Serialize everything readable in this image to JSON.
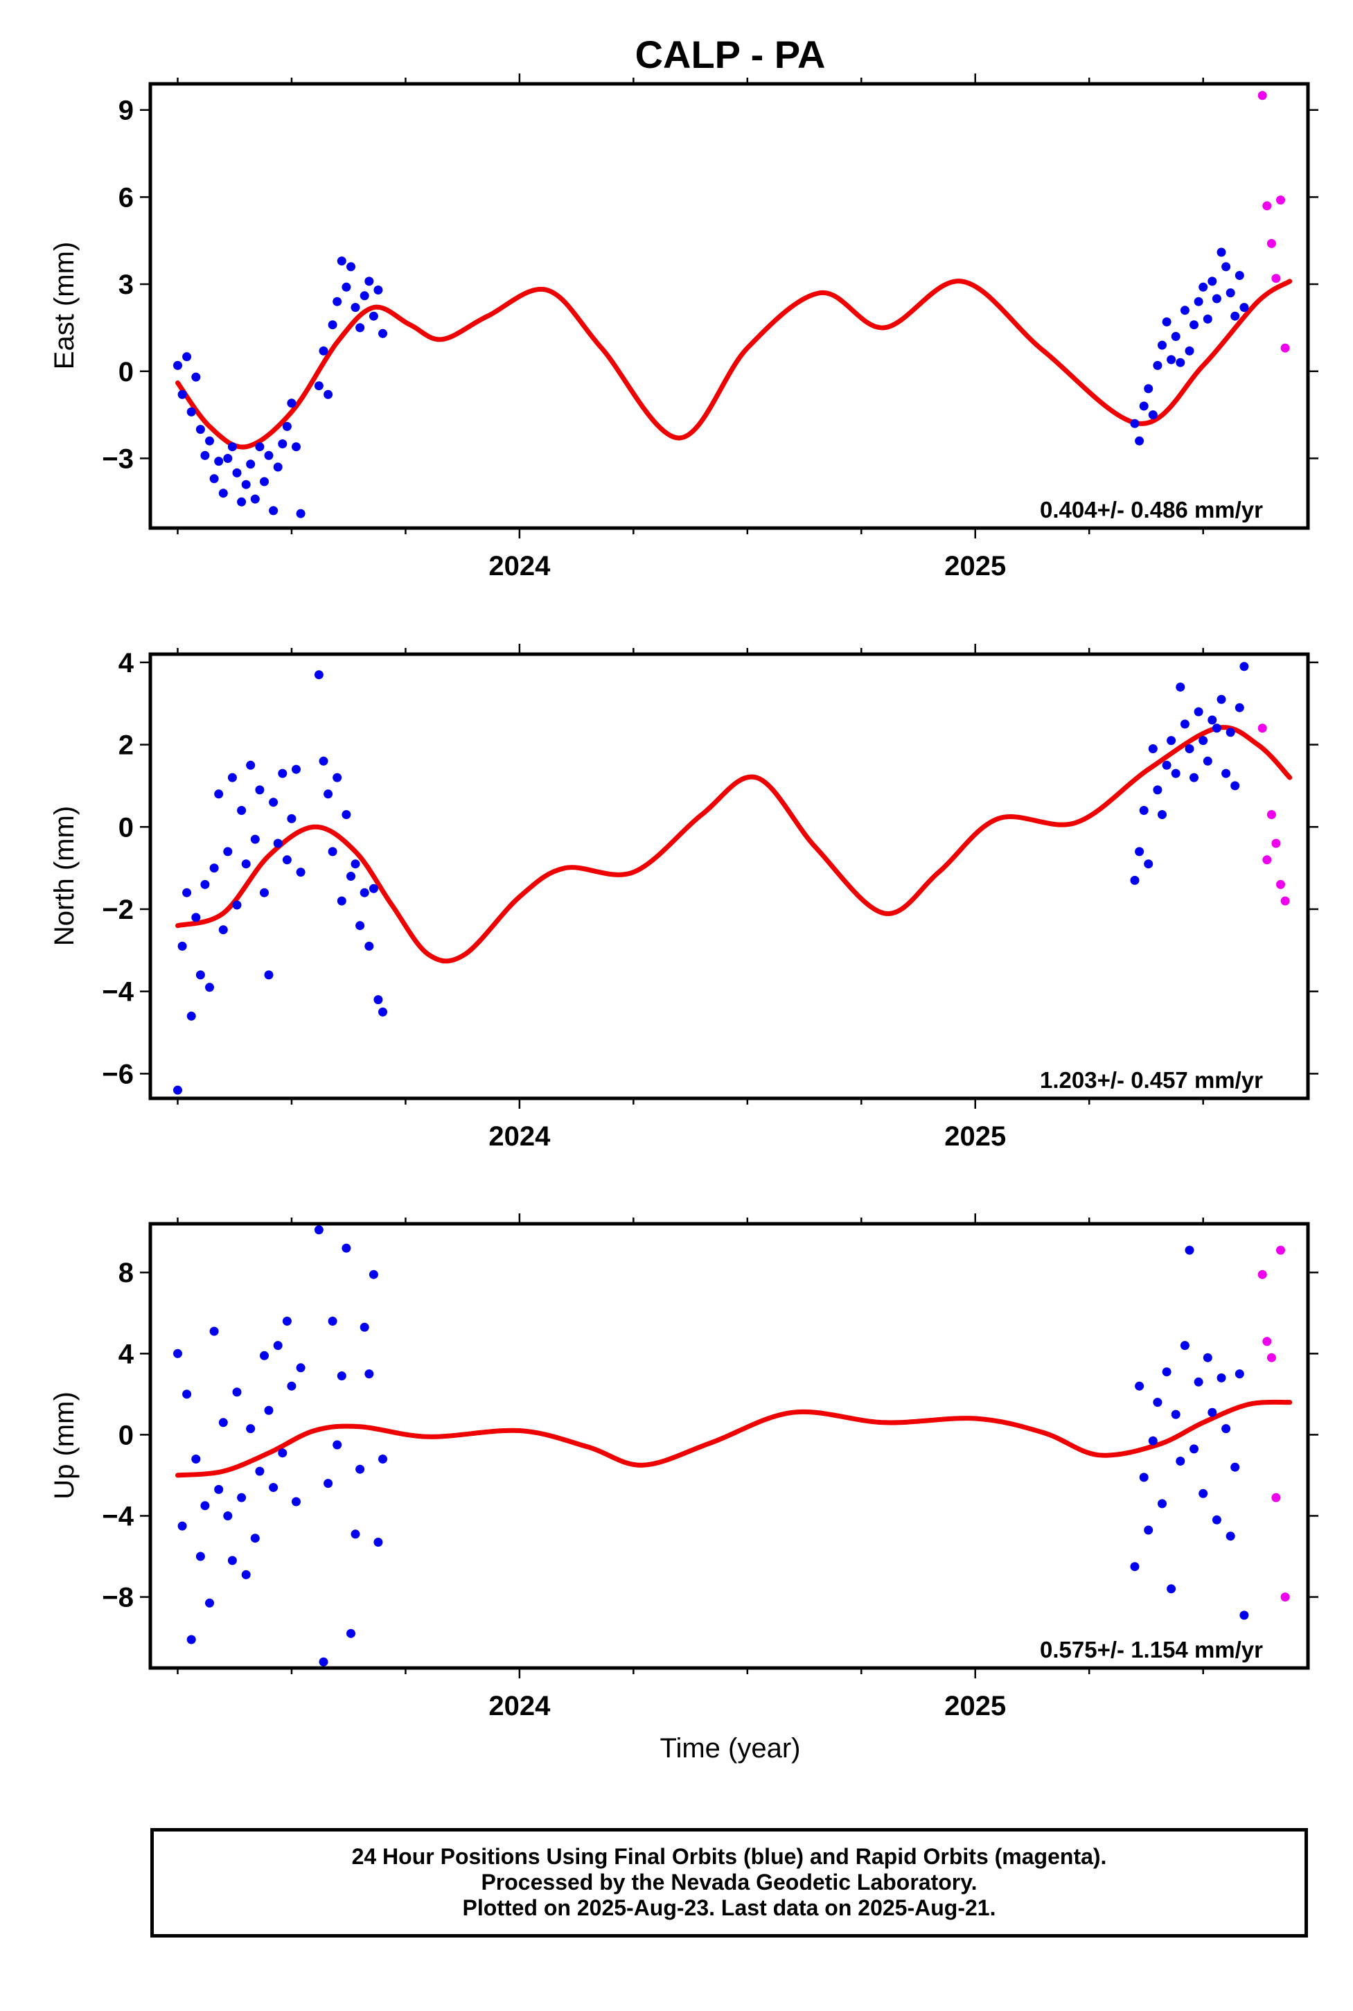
{
  "figure": {
    "title": "CALP - PA",
    "xlabel": "Time (year)",
    "caption_lines": [
      "24 Hour Positions Using Final Orbits (blue) and Rapid Orbits (magenta).",
      "Processed by the Nevada Geodetic Laboratory.",
      "Plotted on 2025-Aug-23. Last data on 2025-Aug-21."
    ],
    "colors": {
      "final": "#0000ee",
      "rapid": "#ee00ee",
      "model": "#ee0000",
      "axes": "#000000",
      "background": "#ffffff"
    }
  },
  "chart_data": [
    {
      "type": "scatter",
      "ylabel": "East (mm)",
      "rate_label": "0.404+/- 0.486 mm/yr",
      "xlim": [
        2023.19,
        2025.73
      ],
      "ylim": [
        -5.4,
        9.9
      ],
      "xticks": [
        "2024",
        "2025"
      ],
      "yticks": [
        "9",
        "6",
        "3",
        "0",
        "−3"
      ],
      "ytick_values": [
        9,
        6,
        3,
        0,
        -3
      ],
      "series": [
        {
          "kind": "final",
          "x": [
            2023.25,
            2023.26,
            2023.27,
            2023.28,
            2023.29,
            2023.3,
            2023.31,
            2023.32,
            2023.33,
            2023.34,
            2023.35,
            2023.36,
            2023.37,
            2023.38,
            2023.39,
            2023.4,
            2023.41,
            2023.42,
            2023.43,
            2023.44,
            2023.45,
            2023.46,
            2023.47,
            2023.48,
            2023.49,
            2023.5,
            2023.51,
            2023.52,
            2023.56,
            2023.57,
            2023.58,
            2023.59,
            2023.6,
            2023.61,
            2023.62,
            2023.63,
            2023.64,
            2023.65,
            2023.66,
            2023.67,
            2023.68,
            2023.69,
            2023.7,
            2025.35,
            2025.36,
            2025.37,
            2025.38,
            2025.39,
            2025.4,
            2025.41,
            2025.42,
            2025.43,
            2025.44,
            2025.45,
            2025.46,
            2025.47,
            2025.48,
            2025.49,
            2025.5,
            2025.51,
            2025.52,
            2025.53,
            2025.54,
            2025.55,
            2025.56,
            2025.57,
            2025.58,
            2025.59
          ],
          "y": [
            0.2,
            -0.8,
            0.5,
            -1.4,
            -0.2,
            -2.0,
            -2.9,
            -2.4,
            -3.7,
            -3.1,
            -4.2,
            -3.0,
            -2.6,
            -3.5,
            -4.5,
            -3.9,
            -3.2,
            -4.4,
            -2.6,
            -3.8,
            -2.9,
            -4.8,
            -3.3,
            -2.5,
            -1.9,
            -1.1,
            -2.6,
            -4.9,
            -0.5,
            0.7,
            -0.8,
            1.6,
            2.4,
            3.8,
            2.9,
            3.6,
            2.2,
            1.5,
            2.6,
            3.1,
            1.9,
            2.8,
            1.3,
            -1.8,
            -2.4,
            -1.2,
            -0.6,
            -1.5,
            0.2,
            0.9,
            1.7,
            0.4,
            1.2,
            0.3,
            2.1,
            0.7,
            1.6,
            2.4,
            2.9,
            1.8,
            3.1,
            2.5,
            4.1,
            3.6,
            2.7,
            1.9,
            3.3,
            2.2
          ]
        },
        {
          "kind": "rapid",
          "x": [
            2025.63,
            2025.64,
            2025.65,
            2025.66,
            2025.67,
            2025.68
          ],
          "y": [
            9.5,
            5.7,
            4.4,
            3.2,
            5.9,
            0.8
          ]
        }
      ]
    },
    {
      "type": "scatter",
      "ylabel": "North (mm)",
      "rate_label": "1.203+/- 0.457 mm/yr",
      "xlim": [
        2023.19,
        2025.73
      ],
      "ylim": [
        -6.6,
        4.2
      ],
      "xticks": [
        "2024",
        "2025"
      ],
      "yticks": [
        "4",
        "2",
        "0",
        "−2",
        "−4",
        "−6"
      ],
      "ytick_values": [
        4,
        2,
        0,
        -2,
        -4,
        -6
      ],
      "series": [
        {
          "kind": "final",
          "x": [
            2023.25,
            2023.26,
            2023.27,
            2023.28,
            2023.29,
            2023.3,
            2023.31,
            2023.32,
            2023.33,
            2023.34,
            2023.35,
            2023.36,
            2023.37,
            2023.38,
            2023.39,
            2023.4,
            2023.41,
            2023.42,
            2023.43,
            2023.44,
            2023.45,
            2023.46,
            2023.47,
            2023.48,
            2023.49,
            2023.5,
            2023.51,
            2023.52,
            2023.56,
            2023.57,
            2023.58,
            2023.59,
            2023.6,
            2023.61,
            2023.62,
            2023.63,
            2023.64,
            2023.65,
            2023.66,
            2023.67,
            2023.68,
            2023.69,
            2023.7,
            2025.35,
            2025.36,
            2025.37,
            2025.38,
            2025.39,
            2025.4,
            2025.41,
            2025.42,
            2025.43,
            2025.44,
            2025.45,
            2025.46,
            2025.47,
            2025.48,
            2025.49,
            2025.5,
            2025.51,
            2025.52,
            2025.53,
            2025.54,
            2025.55,
            2025.56,
            2025.57,
            2025.58,
            2025.59
          ],
          "y": [
            -6.4,
            -2.9,
            -1.6,
            -4.6,
            -2.2,
            -3.6,
            -1.4,
            -3.9,
            -1.0,
            0.8,
            -2.5,
            -0.6,
            1.2,
            -1.9,
            0.4,
            -0.9,
            1.5,
            -0.3,
            0.9,
            -1.6,
            -3.6,
            0.6,
            -0.4,
            1.3,
            -0.8,
            0.2,
            1.4,
            -1.1,
            3.7,
            1.6,
            0.8,
            -0.6,
            1.2,
            -1.8,
            0.3,
            -1.2,
            -0.9,
            -2.4,
            -1.6,
            -2.9,
            -1.5,
            -4.2,
            -4.5,
            -1.3,
            -0.6,
            0.4,
            -0.9,
            1.9,
            0.9,
            0.3,
            1.5,
            2.1,
            1.3,
            3.4,
            2.5,
            1.9,
            1.2,
            2.8,
            2.1,
            1.6,
            2.6,
            2.4,
            3.1,
            1.3,
            2.3,
            1.0,
            2.9,
            3.9
          ]
        },
        {
          "kind": "rapid",
          "x": [
            2025.63,
            2025.64,
            2025.65,
            2025.66,
            2025.67,
            2025.68
          ],
          "y": [
            2.4,
            -0.8,
            0.3,
            -0.4,
            -1.4,
            -1.8
          ]
        }
      ]
    },
    {
      "type": "scatter",
      "ylabel": "Up (mm)",
      "rate_label": "0.575+/- 1.154 mm/yr",
      "xlim": [
        2023.19,
        2025.73
      ],
      "ylim": [
        -11.5,
        10.4
      ],
      "xticks": [
        "2024",
        "2025"
      ],
      "yticks": [
        "8",
        "4",
        "0",
        "−4",
        "−8"
      ],
      "ytick_values": [
        8,
        4,
        0,
        -4,
        -8
      ],
      "series": [
        {
          "kind": "final",
          "x": [
            2023.25,
            2023.26,
            2023.27,
            2023.28,
            2023.29,
            2023.3,
            2023.31,
            2023.32,
            2023.33,
            2023.34,
            2023.35,
            2023.36,
            2023.37,
            2023.38,
            2023.39,
            2023.4,
            2023.41,
            2023.42,
            2023.43,
            2023.44,
            2023.45,
            2023.46,
            2023.47,
            2023.48,
            2023.49,
            2023.5,
            2023.51,
            2023.52,
            2023.56,
            2023.57,
            2023.58,
            2023.59,
            2023.6,
            2023.61,
            2023.62,
            2023.63,
            2023.64,
            2023.65,
            2023.66,
            2023.67,
            2023.68,
            2023.69,
            2023.7,
            2025.35,
            2025.36,
            2025.37,
            2025.38,
            2025.39,
            2025.4,
            2025.41,
            2025.42,
            2025.43,
            2025.44,
            2025.45,
            2025.46,
            2025.47,
            2025.48,
            2025.49,
            2025.5,
            2025.51,
            2025.52,
            2025.53,
            2025.54,
            2025.55,
            2025.56,
            2025.57,
            2025.58,
            2025.59
          ],
          "y": [
            4.0,
            -4.5,
            2.0,
            -10.1,
            -1.2,
            -6.0,
            -3.5,
            -8.3,
            5.1,
            -2.7,
            0.6,
            -4.0,
            -6.2,
            2.1,
            -3.1,
            -6.9,
            0.3,
            -5.1,
            -1.8,
            3.9,
            1.2,
            -2.6,
            4.4,
            -0.9,
            5.6,
            2.4,
            -3.3,
            3.3,
            10.1,
            -11.2,
            -2.4,
            5.6,
            -0.5,
            2.9,
            9.2,
            -9.8,
            -4.9,
            -1.7,
            5.3,
            3.0,
            7.9,
            -5.3,
            -1.2,
            -6.5,
            2.4,
            -2.1,
            -4.7,
            -0.3,
            1.6,
            -3.4,
            3.1,
            -7.6,
            1.0,
            -1.3,
            4.4,
            9.1,
            -0.7,
            2.6,
            -2.9,
            3.8,
            1.1,
            -4.2,
            2.8,
            0.3,
            -5.0,
            -1.6,
            3.0,
            -8.9
          ]
        },
        {
          "kind": "rapid",
          "x": [
            2025.63,
            2025.64,
            2025.65,
            2025.66,
            2025.67,
            2025.68
          ],
          "y": [
            7.9,
            4.6,
            3.8,
            -3.1,
            9.1,
            -8.0
          ]
        }
      ]
    }
  ]
}
